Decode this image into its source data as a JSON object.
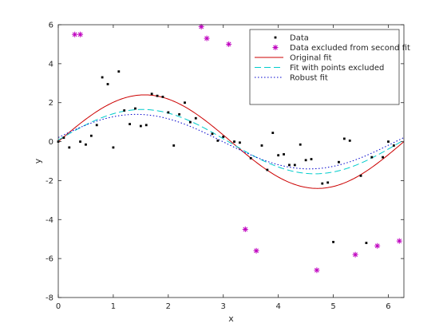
{
  "chart_data": {
    "type": "scatter",
    "title": "",
    "xlabel": "x",
    "ylabel": "y",
    "xlim": [
      0,
      6.2832
    ],
    "ylim": [
      -8,
      6
    ],
    "xticks": [
      0,
      1,
      2,
      3,
      4,
      5,
      6
    ],
    "yticks": [
      -8,
      -6,
      -4,
      -2,
      0,
      2,
      4,
      6
    ],
    "grid": false,
    "legend_position": "top-right",
    "series": [
      {
        "name": "Data",
        "kind": "points",
        "marker": "dot",
        "color": "#000000",
        "points": [
          [
            0.0,
            0.0
          ],
          [
            0.1,
            0.2
          ],
          [
            0.2,
            -0.3
          ],
          [
            0.4,
            0.0
          ],
          [
            0.5,
            -0.15
          ],
          [
            0.6,
            0.3
          ],
          [
            0.7,
            0.85
          ],
          [
            0.8,
            3.3
          ],
          [
            0.9,
            2.95
          ],
          [
            1.0,
            -0.3
          ],
          [
            1.1,
            3.6
          ],
          [
            1.2,
            1.6
          ],
          [
            1.3,
            0.9
          ],
          [
            1.4,
            1.7
          ],
          [
            1.5,
            0.8
          ],
          [
            1.6,
            0.85
          ],
          [
            1.7,
            2.45
          ],
          [
            1.8,
            2.35
          ],
          [
            1.9,
            2.3
          ],
          [
            2.0,
            1.5
          ],
          [
            2.1,
            -0.2
          ],
          [
            2.2,
            1.4
          ],
          [
            2.3,
            2.0
          ],
          [
            2.4,
            1.0
          ],
          [
            2.5,
            1.2
          ],
          [
            2.8,
            0.4
          ],
          [
            2.9,
            0.05
          ],
          [
            3.0,
            0.25
          ],
          [
            3.2,
            0.0
          ],
          [
            3.3,
            -0.05
          ],
          [
            3.5,
            -0.85
          ],
          [
            3.7,
            -0.2
          ],
          [
            3.8,
            -1.45
          ],
          [
            3.9,
            0.45
          ],
          [
            4.0,
            -0.7
          ],
          [
            4.1,
            -0.65
          ],
          [
            4.2,
            -1.2
          ],
          [
            4.3,
            -1.2
          ],
          [
            4.4,
            -0.15
          ],
          [
            4.5,
            -0.95
          ],
          [
            4.6,
            -0.9
          ],
          [
            4.8,
            -2.15
          ],
          [
            4.9,
            -2.1
          ],
          [
            5.0,
            -5.15
          ],
          [
            5.1,
            -1.05
          ],
          [
            5.2,
            0.15
          ],
          [
            5.3,
            0.05
          ],
          [
            5.5,
            -1.75
          ],
          [
            5.6,
            -5.2
          ],
          [
            5.7,
            -0.8
          ],
          [
            5.9,
            -0.8
          ],
          [
            6.0,
            0.0
          ],
          [
            6.1,
            -0.2
          ]
        ]
      },
      {
        "name": "Data excluded from second fit",
        "kind": "points",
        "marker": "asterisk",
        "color": "#bf00bf",
        "points": [
          [
            0.3,
            5.5
          ],
          [
            0.4,
            5.5
          ],
          [
            2.6,
            5.9
          ],
          [
            2.7,
            5.3
          ],
          [
            3.1,
            5.0
          ],
          [
            3.4,
            -4.5
          ],
          [
            3.6,
            -5.6
          ],
          [
            4.7,
            -6.6
          ],
          [
            5.4,
            -5.8
          ],
          [
            5.8,
            -5.35
          ],
          [
            6.2,
            -5.1
          ]
        ]
      },
      {
        "name": "Original fit",
        "kind": "line",
        "style": "solid",
        "color": "#cc0000",
        "amplitude": 2.4,
        "frequency": 1.0,
        "phase": 0
      },
      {
        "name": "Fit with points excluded",
        "kind": "line",
        "style": "dashed",
        "color": "#00cccc",
        "amplitude": 1.65,
        "frequency": 1.0,
        "phase": 0.05
      },
      {
        "name": "Robust fit",
        "kind": "line",
        "style": "dotted",
        "color": "#0000cc",
        "amplitude": 1.4,
        "frequency": 1.0,
        "phase": 0.15
      }
    ]
  }
}
